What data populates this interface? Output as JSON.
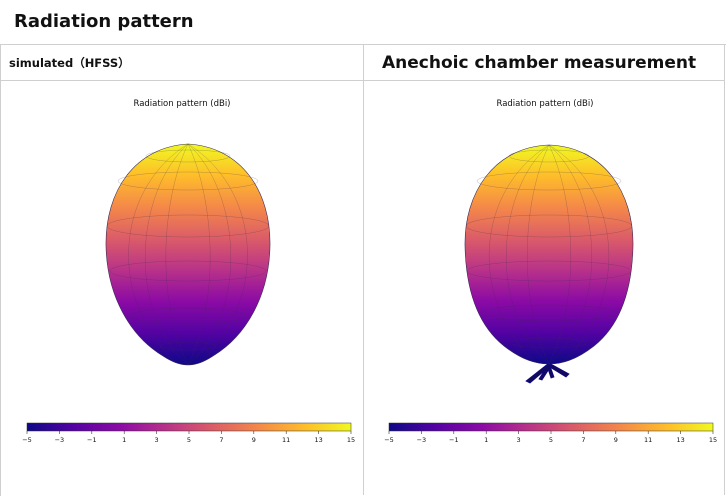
{
  "page": {
    "title": "Radiation pattern"
  },
  "columns": {
    "left_header": "simulated（HFSS）",
    "right_header": "Anechoic chamber measurement"
  },
  "panels": [
    {
      "id": "simulated",
      "plot_title": "Radiation pattern (dBi)",
      "colorbar_ticks": [
        "−5",
        "−3",
        "−1",
        "1",
        "3",
        "5",
        "7",
        "9",
        "11",
        "13",
        "15"
      ]
    },
    {
      "id": "measured",
      "plot_title": "Radiation pattern (dBi)",
      "colorbar_ticks": [
        "−5",
        "−3",
        "−1",
        "1",
        "3",
        "5",
        "7",
        "9",
        "11",
        "13",
        "15"
      ]
    }
  ],
  "colors": {
    "colormap": [
      "#0d0887",
      "#5302a3",
      "#8b0aa5",
      "#b83289",
      "#db5c68",
      "#f48849",
      "#febd2a",
      "#f0f921"
    ],
    "border": "#cfcfcf"
  }
}
